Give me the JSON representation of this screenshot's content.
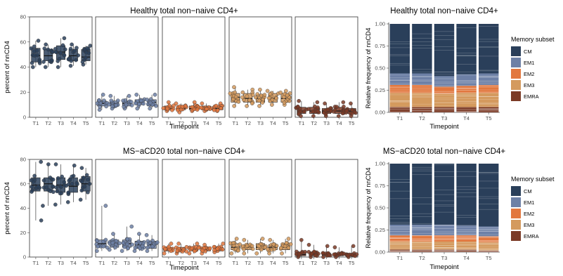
{
  "colors": {
    "CM": "#2a3f5a",
    "EM1": "#6d80a6",
    "EM2": "#e2773e",
    "EM3": "#d49a5e",
    "EMRA": "#7b3a26",
    "axis_text": "#4d4d4d",
    "panel_border": "#333333"
  },
  "chart_data": [
    {
      "type": "box",
      "title": "Healthy total non−naive CD4+",
      "xlabel": "Timepoint",
      "ylabel": "percent of nnCD4",
      "ylim": [
        0,
        80
      ],
      "yticks": [
        "0",
        "20",
        "40",
        "60",
        "80"
      ],
      "categories": [
        "T1",
        "T2",
        "T3",
        "T4",
        "T5"
      ],
      "series": [
        {
          "subset": "CM",
          "medians": [
            49,
            49,
            52,
            49,
            48
          ],
          "q1": [
            44,
            45,
            46,
            45,
            45
          ],
          "q3": [
            55,
            54,
            57,
            54,
            54
          ],
          "min": [
            40,
            40,
            40,
            41,
            42
          ],
          "max": [
            61,
            58,
            63,
            58,
            57
          ]
        },
        {
          "subset": "EM1",
          "medians": [
            11,
            11,
            11,
            12,
            12
          ],
          "q1": [
            9,
            9,
            9,
            10,
            9
          ],
          "q3": [
            13,
            13,
            13,
            14,
            14
          ],
          "min": [
            6,
            7,
            7,
            7,
            7
          ],
          "max": [
            18,
            17,
            17,
            18,
            18
          ]
        },
        {
          "subset": "EM2",
          "medians": [
            7,
            7,
            7,
            7,
            7
          ],
          "q1": [
            6,
            6,
            6,
            6,
            6
          ],
          "q3": [
            9,
            9,
            9,
            9,
            9
          ],
          "min": [
            5,
            4,
            5,
            5,
            5
          ],
          "max": [
            12,
            11,
            12,
            11,
            11
          ]
        },
        {
          "subset": "EM3",
          "medians": [
            16,
            15,
            15,
            15,
            15
          ],
          "q1": [
            12,
            12,
            12,
            12,
            12
          ],
          "q3": [
            19,
            19,
            18,
            19,
            19
          ],
          "min": [
            9,
            9,
            9,
            10,
            10
          ],
          "max": [
            24,
            22,
            22,
            21,
            21
          ]
        },
        {
          "subset": "EMRA",
          "medians": [
            5,
            5,
            5,
            5,
            5
          ],
          "q1": [
            3,
            3,
            3,
            3,
            3
          ],
          "q3": [
            8,
            8,
            7,
            8,
            7
          ],
          "min": [
            1,
            1,
            1,
            1,
            1
          ],
          "max": [
            13,
            12,
            11,
            12,
            11
          ]
        }
      ]
    },
    {
      "type": "stacked_bar",
      "title": "Healthy total non−naive CD4+",
      "xlabel": "Timepoint",
      "ylabel": "Relative frequency of nnCD4",
      "ylim": [
        0,
        1
      ],
      "yticks": [
        "0.00",
        "0.25",
        "0.50",
        "0.75",
        "1.00"
      ],
      "categories": [
        "T1",
        "T2",
        "T3",
        "T4",
        "T5"
      ],
      "legend_title": "Memory subset",
      "series": [
        {
          "name": "EMRA",
          "values": [
            0.06,
            0.06,
            0.06,
            0.06,
            0.06
          ]
        },
        {
          "name": "EM3",
          "values": [
            0.16,
            0.16,
            0.15,
            0.16,
            0.16
          ]
        },
        {
          "name": "EM2",
          "values": [
            0.09,
            0.09,
            0.08,
            0.08,
            0.09
          ]
        },
        {
          "name": "EM1",
          "values": [
            0.13,
            0.13,
            0.12,
            0.13,
            0.13
          ]
        },
        {
          "name": "CM",
          "values": [
            0.56,
            0.56,
            0.59,
            0.57,
            0.56
          ]
        }
      ]
    },
    {
      "type": "box",
      "title": "MS−aCD20 total non−naive CD4+",
      "xlabel": "Timepoint",
      "ylabel": "percent of nnCD4",
      "ylim": [
        0,
        80
      ],
      "yticks": [
        "0",
        "20",
        "40",
        "60",
        "80"
      ],
      "categories": [
        "T1",
        "T2",
        "T3",
        "T4",
        "T5"
      ],
      "series": [
        {
          "subset": "CM",
          "medians": [
            59,
            60,
            59,
            58,
            60
          ],
          "q1": [
            54,
            54,
            53,
            53,
            54
          ],
          "q3": [
            65,
            65,
            65,
            65,
            66
          ],
          "min": [
            30,
            42,
            43,
            45,
            47
          ],
          "max": [
            78,
            76,
            76,
            75,
            73
          ]
        },
        {
          "subset": "EM1",
          "medians": [
            11,
            11,
            11,
            10,
            10
          ],
          "q1": [
            8,
            8,
            8,
            7,
            7
          ],
          "q3": [
            14,
            14,
            14,
            13,
            13
          ],
          "min": [
            5,
            6,
            5,
            5,
            5
          ],
          "max": [
            42,
            19,
            25,
            19,
            18
          ]
        },
        {
          "subset": "EM2",
          "medians": [
            6,
            6,
            7,
            6,
            6
          ],
          "q1": [
            5,
            5,
            5,
            5,
            5
          ],
          "q3": [
            8,
            8,
            8,
            8,
            8
          ],
          "min": [
            3,
            3,
            3,
            3,
            4
          ],
          "max": [
            11,
            11,
            11,
            10,
            11
          ]
        },
        {
          "subset": "EM3",
          "medians": [
            8,
            8,
            8,
            8,
            8
          ],
          "q1": [
            6,
            6,
            6,
            6,
            6
          ],
          "q3": [
            11,
            10,
            11,
            10,
            11
          ],
          "min": [
            3,
            3,
            3,
            3,
            3
          ],
          "max": [
            15,
            14,
            15,
            14,
            15
          ]
        },
        {
          "subset": "EMRA",
          "medians": [
            2,
            2,
            2,
            2,
            1
          ],
          "q1": [
            1,
            1,
            1,
            1,
            1
          ],
          "q3": [
            4,
            4,
            3,
            3,
            3
          ],
          "min": [
            0,
            0,
            0,
            0,
            0
          ],
          "max": [
            14,
            10,
            9,
            8,
            9
          ]
        }
      ]
    },
    {
      "type": "stacked_bar",
      "title": "MS−aCD20 total non−naive CD4+",
      "xlabel": "Timepoint",
      "ylabel": "Relative frequency of nnCD4",
      "ylim": [
        0,
        1
      ],
      "yticks": [
        "0.00",
        "0.25",
        "0.50",
        "0.75",
        "1.00"
      ],
      "categories": [
        "T1",
        "T2",
        "T3",
        "T4",
        "T5"
      ],
      "legend_title": "Memory subset",
      "series": [
        {
          "name": "EMRA",
          "values": [
            0.03,
            0.03,
            0.03,
            0.03,
            0.02
          ]
        },
        {
          "name": "EM3",
          "values": [
            0.09,
            0.09,
            0.09,
            0.09,
            0.09
          ]
        },
        {
          "name": "EM2",
          "values": [
            0.07,
            0.07,
            0.07,
            0.07,
            0.07
          ]
        },
        {
          "name": "EM1",
          "values": [
            0.12,
            0.12,
            0.12,
            0.11,
            0.11
          ]
        },
        {
          "name": "CM",
          "values": [
            0.69,
            0.69,
            0.69,
            0.7,
            0.71
          ]
        }
      ]
    }
  ]
}
